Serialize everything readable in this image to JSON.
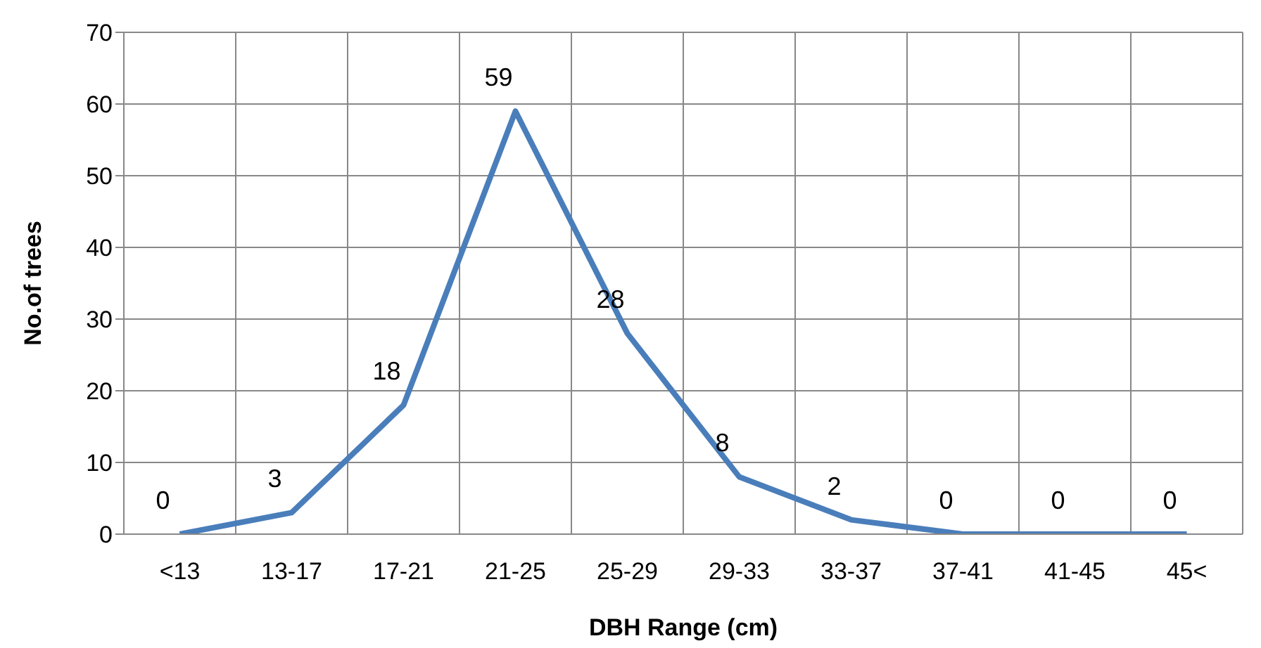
{
  "chart_data": {
    "type": "line",
    "xlabel": "DBH Range (cm)",
    "ylabel": "No.of trees",
    "categories": [
      "<13",
      "13-17",
      "17-21",
      "21-25",
      "25-29",
      "29-33",
      "33-37",
      "37-41",
      "41-45",
      "45<"
    ],
    "series": [
      {
        "color": "#4a7ebb",
        "values": [
          0,
          3,
          18,
          59,
          28,
          8,
          2,
          0,
          0,
          0
        ]
      }
    ],
    "ylim": [
      0,
      70
    ],
    "yticks": [
      0,
      10,
      20,
      30,
      40,
      50,
      60,
      70
    ],
    "grid": true,
    "data_labels": true,
    "marker": "none",
    "line_style": "solid"
  }
}
